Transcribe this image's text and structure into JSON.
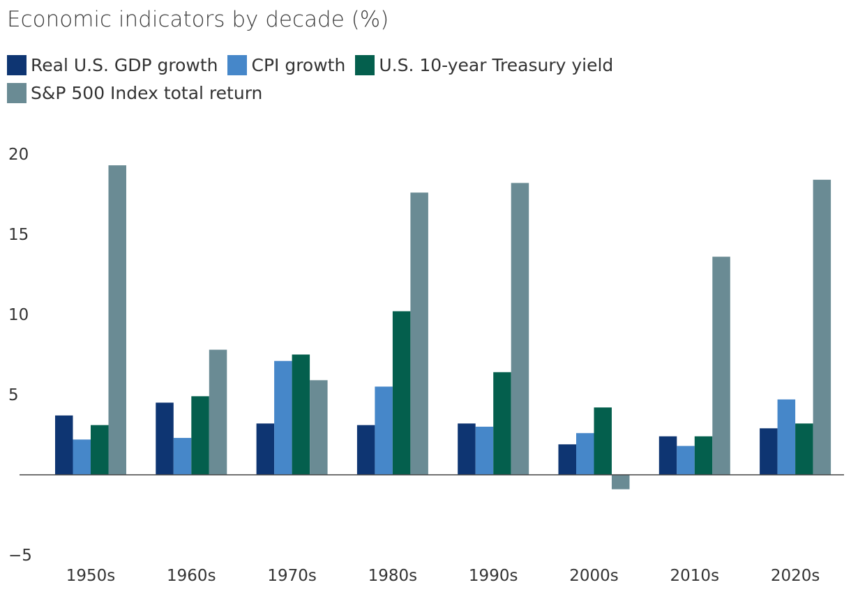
{
  "chart_data": {
    "type": "bar",
    "title": "Economic indicators by decade (%)",
    "categories": [
      "1950s",
      "1960s",
      "1970s",
      "1980s",
      "1990s",
      "2000s",
      "2010s",
      "2020s"
    ],
    "series": [
      {
        "name": "Real U.S. GDP growth",
        "color": "#0e3572",
        "values": [
          3.7,
          4.5,
          3.2,
          3.1,
          3.2,
          1.9,
          2.4,
          2.9
        ]
      },
      {
        "name": "CPI growth",
        "color": "#4687c9",
        "values": [
          2.2,
          2.3,
          7.1,
          5.5,
          3.0,
          2.6,
          1.8,
          4.7
        ]
      },
      {
        "name": "U.S. 10-year Treasury yield",
        "color": "#045f4d",
        "values": [
          3.1,
          4.9,
          7.5,
          10.2,
          6.4,
          4.2,
          2.4,
          3.2
        ]
      },
      {
        "name": "S&P 500 Index total return",
        "color": "#6a8b94",
        "values": [
          19.3,
          7.8,
          5.9,
          17.6,
          18.2,
          -0.9,
          13.6,
          18.4
        ]
      }
    ],
    "yticks": [
      "20",
      "15",
      "10",
      "5",
      "0",
      "−5"
    ],
    "ylim": [
      -5,
      20
    ],
    "xlabel": "",
    "ylabel": "",
    "grid": false,
    "legend_position": "top-left"
  }
}
